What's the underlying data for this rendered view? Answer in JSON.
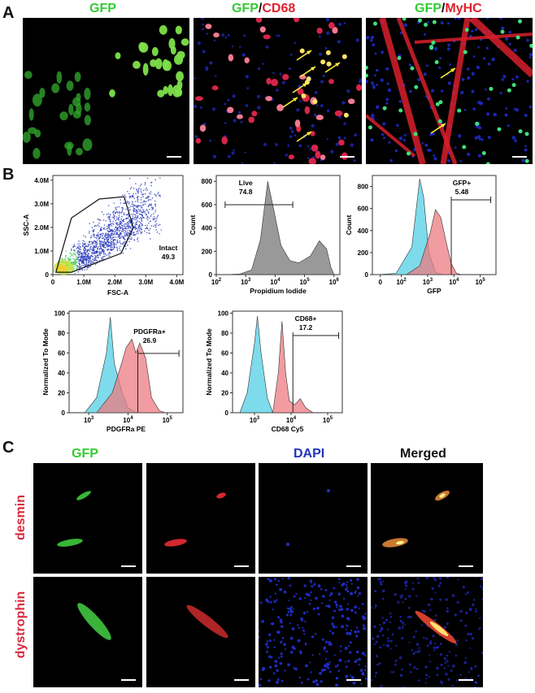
{
  "figure": {
    "panel_A_letter": "A",
    "panel_B_letter": "B",
    "panel_C_letter": "C",
    "panelA": {
      "titles": [
        {
          "parts": [
            {
              "text": "GFP",
              "color": "#33cc33"
            }
          ]
        },
        {
          "parts": [
            {
              "text": "GFP",
              "color": "#33cc33"
            },
            {
              "text": "/",
              "color": "#111111"
            },
            {
              "text": "CD68",
              "color": "#e0222e"
            }
          ]
        },
        {
          "parts": [
            {
              "text": "GFP",
              "color": "#33cc33"
            },
            {
              "text": "/",
              "color": "#111111"
            },
            {
              "text": "MyHC",
              "color": "#e0222e"
            }
          ]
        }
      ]
    },
    "panelC": {
      "column_titles": [
        {
          "text": "GFP",
          "color": "#33cc33"
        },
        {
          "text": "",
          "color": "#e0222e"
        },
        {
          "text": "DAPI",
          "color": "#2233bb"
        },
        {
          "text": "Merged",
          "color": "#111111"
        }
      ],
      "row_labels": [
        "desmin",
        "dystrophin"
      ]
    }
  },
  "chart_data": [
    {
      "type": "scatter",
      "id": "fsc_ssc",
      "xlabel": "FSC-A",
      "ylabel": "SSC-A",
      "x_ticks": [
        "0",
        "1.0M",
        "2.0M",
        "3.0M",
        "4.0M"
      ],
      "y_ticks": [
        "0",
        "1.0M",
        "2.0M",
        "3.0M",
        "4.0M"
      ],
      "xlim": [
        0,
        4.2
      ],
      "ylim": [
        0,
        4.2
      ],
      "gate": {
        "name": "Intact",
        "value": "49.3",
        "polygon": [
          [
            0.1,
            0.1
          ],
          [
            0.6,
            2.4
          ],
          [
            1.5,
            3.2
          ],
          [
            2.3,
            3.3
          ],
          [
            2.6,
            2.0
          ],
          [
            2.2,
            0.9
          ],
          [
            0.6,
            0.1
          ]
        ]
      }
    },
    {
      "type": "area",
      "id": "pi",
      "xlabel": "Propidium Iodide",
      "ylabel": "Count",
      "x_ticks": [
        "10^2",
        "10^3",
        "10^4",
        "10^5",
        "10^6"
      ],
      "y_ticks": [
        "0",
        "200",
        "400",
        "600",
        "800"
      ],
      "ylim": [
        0,
        850
      ],
      "gate": {
        "name": "Live",
        "value": "74.8"
      },
      "series": [
        {
          "color": "#777777",
          "points": [
            [
              2.3,
              0
            ],
            [
              2.8,
              5
            ],
            [
              3.2,
              40
            ],
            [
              3.5,
              300
            ],
            [
              3.75,
              800
            ],
            [
              3.95,
              560
            ],
            [
              4.2,
              250
            ],
            [
              4.5,
              120
            ],
            [
              4.8,
              100
            ],
            [
              5.2,
              160
            ],
            [
              5.5,
              290
            ],
            [
              5.75,
              220
            ],
            [
              5.9,
              60
            ],
            [
              6.0,
              0
            ]
          ]
        }
      ]
    },
    {
      "type": "area",
      "id": "gfp",
      "xlabel": "GFP",
      "ylabel": "Count",
      "x_ticks": [
        "0",
        "10^2",
        "10^3",
        "10^4",
        "10^5"
      ],
      "y_ticks": [
        "0",
        "200",
        "400",
        "600",
        "800"
      ],
      "ylim": [
        0,
        900
      ],
      "gate": {
        "name": "GFP+",
        "value": "5.48"
      },
      "series": [
        {
          "color": "#53cfe6",
          "points": [
            [
              1.1,
              0
            ],
            [
              1.8,
              10
            ],
            [
              2.4,
              250
            ],
            [
              2.7,
              870
            ],
            [
              2.85,
              700
            ],
            [
              3.05,
              200
            ],
            [
              3.3,
              20
            ],
            [
              3.6,
              0
            ]
          ]
        },
        {
          "color": "#ec7b80",
          "points": [
            [
              2.2,
              0
            ],
            [
              2.7,
              80
            ],
            [
              3.1,
              380
            ],
            [
              3.3,
              590
            ],
            [
              3.5,
              520
            ],
            [
              3.7,
              300
            ],
            [
              3.9,
              100
            ],
            [
              4.1,
              10
            ],
            [
              4.3,
              0
            ]
          ]
        }
      ]
    },
    {
      "type": "area",
      "id": "pdgfra",
      "xlabel": "PDGFRa PE",
      "ylabel": "Normalized To Mode",
      "x_ticks": [
        "10^3",
        "10^4",
        "10^5"
      ],
      "y_ticks": [
        "0",
        "20",
        "40",
        "60",
        "80",
        "100"
      ],
      "ylim": [
        0,
        102
      ],
      "gate": {
        "name": "PDGFRa+",
        "value": "26.9"
      },
      "series": [
        {
          "color": "#53cfe6",
          "points": [
            [
              2.9,
              0
            ],
            [
              3.2,
              15
            ],
            [
              3.45,
              60
            ],
            [
              3.55,
              96
            ],
            [
              3.65,
              50
            ],
            [
              3.85,
              20
            ],
            [
              4.0,
              5
            ],
            [
              4.2,
              0
            ]
          ]
        },
        {
          "color": "#ec7b80",
          "points": [
            [
              3.2,
              0
            ],
            [
              3.6,
              20
            ],
            [
              3.8,
              45
            ],
            [
              3.95,
              65
            ],
            [
              4.1,
              74
            ],
            [
              4.2,
              60
            ],
            [
              4.3,
              70
            ],
            [
              4.45,
              55
            ],
            [
              4.6,
              15
            ],
            [
              4.8,
              2
            ],
            [
              4.95,
              0
            ]
          ]
        }
      ]
    },
    {
      "type": "area",
      "id": "cd68",
      "xlabel": "CD68 Cy5",
      "ylabel": "Normalized To Mode",
      "x_ticks": [
        "10^3",
        "10^4",
        "10^5"
      ],
      "y_ticks": [
        "0",
        "20",
        "40",
        "60",
        "80",
        "100"
      ],
      "ylim": [
        0,
        102
      ],
      "gate": {
        "name": "CD68+",
        "value": "17.2"
      },
      "series": [
        {
          "color": "#53cfe6",
          "points": [
            [
              2.6,
              0
            ],
            [
              2.8,
              20
            ],
            [
              3.0,
              70
            ],
            [
              3.08,
              97
            ],
            [
              3.18,
              60
            ],
            [
              3.35,
              15
            ],
            [
              3.5,
              0
            ]
          ]
        },
        {
          "color": "#ec7b80",
          "points": [
            [
              3.5,
              0
            ],
            [
              3.65,
              40
            ],
            [
              3.75,
              92
            ],
            [
              3.85,
              40
            ],
            [
              3.95,
              12
            ],
            [
              4.1,
              8
            ],
            [
              4.25,
              14
            ],
            [
              4.4,
              5
            ],
            [
              4.6,
              0
            ]
          ]
        }
      ]
    }
  ]
}
